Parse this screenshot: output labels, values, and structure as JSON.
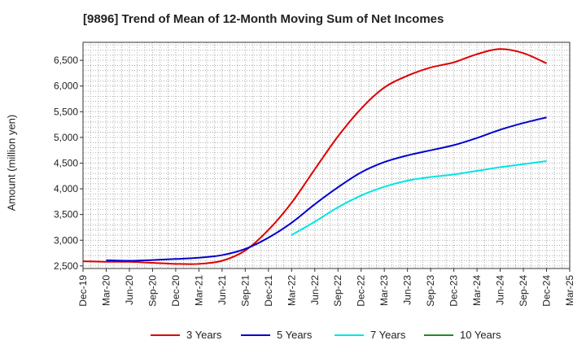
{
  "chart_data": {
    "type": "line",
    "title": "[9896]  Trend of Mean of 12-Month Moving Sum of Net Incomes",
    "ylabel": "Amount (million yen)",
    "xlabel": "",
    "x_ticks": [
      "Dec-19",
      "Mar-20",
      "Jun-20",
      "Sep-20",
      "Dec-20",
      "Mar-21",
      "Jun-21",
      "Sep-21",
      "Dec-21",
      "Mar-22",
      "Jun-22",
      "Sep-22",
      "Dec-22",
      "Mar-23",
      "Jun-23",
      "Sep-23",
      "Dec-23",
      "Mar-24",
      "Jun-24",
      "Sep-24",
      "Dec-24",
      "Mar-25"
    ],
    "y_ticks": [
      2500,
      3000,
      3500,
      4000,
      4500,
      5000,
      5500,
      6000,
      6500
    ],
    "y_tick_labels": [
      "2,500",
      "3,000",
      "3,500",
      "4,000",
      "4,500",
      "5,000",
      "5,500",
      "6,000",
      "6,500"
    ],
    "ylim": [
      2450,
      6850
    ],
    "grid": true,
    "legend_position": "bottom",
    "series": [
      {
        "name": "3 Years",
        "color": "#dd0000",
        "x": [
          "Dec-19",
          "Mar-20",
          "Jun-20",
          "Sep-20",
          "Dec-20",
          "Mar-21",
          "Jun-21",
          "Sep-21",
          "Dec-21",
          "Mar-22",
          "Jun-22",
          "Sep-22",
          "Dec-22",
          "Mar-23",
          "Jun-23",
          "Sep-23",
          "Dec-23",
          "Mar-24",
          "Jun-24",
          "Sep-24",
          "Dec-24"
        ],
        "values": [
          2590,
          2580,
          2580,
          2560,
          2540,
          2540,
          2600,
          2800,
          3200,
          3730,
          4380,
          5020,
          5560,
          5970,
          6200,
          6360,
          6460,
          6620,
          6720,
          6640,
          6440
        ]
      },
      {
        "name": "5 Years",
        "color": "#0000cc",
        "x": [
          "Mar-20",
          "Jun-20",
          "Sep-20",
          "Dec-20",
          "Mar-21",
          "Jun-21",
          "Sep-21",
          "Dec-21",
          "Mar-22",
          "Jun-22",
          "Sep-22",
          "Dec-22",
          "Mar-23",
          "Jun-23",
          "Sep-23",
          "Dec-23",
          "Mar-24",
          "Jun-24",
          "Sep-24",
          "Dec-24"
        ],
        "values": [
          2610,
          2600,
          2615,
          2635,
          2660,
          2710,
          2830,
          3050,
          3340,
          3700,
          4030,
          4320,
          4520,
          4650,
          4750,
          4850,
          4990,
          5150,
          5280,
          5390
        ]
      },
      {
        "name": "7 Years",
        "color": "#00e5e5",
        "x": [
          "Mar-22",
          "Jun-22",
          "Sep-22",
          "Dec-22",
          "Mar-23",
          "Jun-23",
          "Sep-23",
          "Dec-23",
          "Mar-24",
          "Jun-24",
          "Sep-24",
          "Dec-24"
        ],
        "values": [
          3100,
          3360,
          3640,
          3870,
          4040,
          4160,
          4230,
          4280,
          4350,
          4420,
          4480,
          4540
        ]
      },
      {
        "name": "10 Years",
        "color": "#228b22",
        "x": [],
        "values": []
      }
    ]
  }
}
